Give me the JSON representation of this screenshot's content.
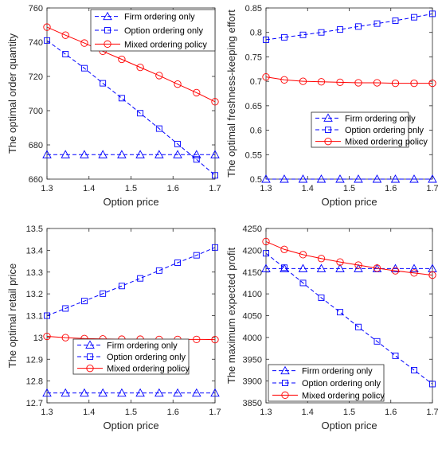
{
  "legend_labels": [
    "Firm ordering only",
    "Option ordering only",
    "Mixed ordering policy"
  ],
  "colors": {
    "firm": "#0000ff",
    "option": "#0000ff",
    "mixed": "#ff0000",
    "axis": "#262626"
  },
  "chart_data": [
    {
      "type": "line",
      "xlabel": "Option price",
      "ylabel": "The optimal order quantity",
      "xlim": [
        1.3,
        1.7
      ],
      "ylim": [
        660,
        760
      ],
      "xticks": [
        "1.3",
        "1.4",
        "1.5",
        "1.6",
        "1.7"
      ],
      "yticks": [
        "660",
        "680",
        "700",
        "720",
        "740",
        "760"
      ],
      "legend": "top-right",
      "x": [
        1.3,
        1.344,
        1.389,
        1.433,
        1.478,
        1.522,
        1.567,
        1.611,
        1.656,
        1.7
      ],
      "series": [
        {
          "name": "Firm ordering only",
          "style": "firm",
          "values": [
            674.3,
            674.3,
            674.3,
            674.3,
            674.3,
            674.3,
            674.3,
            674.3,
            674.3,
            674.3
          ]
        },
        {
          "name": "Option ordering only",
          "style": "option",
          "values": [
            741,
            733,
            724.8,
            716,
            707.3,
            698.5,
            689.5,
            680.5,
            671.5,
            662.2
          ]
        },
        {
          "name": "Mixed ordering policy",
          "style": "mixed",
          "values": [
            748.8,
            744.1,
            739.5,
            734.7,
            730,
            725.3,
            720.5,
            715.5,
            710.5,
            705.2
          ]
        }
      ]
    },
    {
      "type": "line",
      "xlabel": "Option price",
      "ylabel": "The optimal freshness-keeping effort",
      "xlim": [
        1.3,
        1.7
      ],
      "ylim": [
        0.5,
        0.85
      ],
      "xticks": [
        "1.3",
        "1.4",
        "1.5",
        "1.6",
        "1.7"
      ],
      "yticks": [
        "0.5",
        "0.55",
        "0.6",
        "0.65",
        "0.7",
        "0.75",
        "0.8",
        "0.85"
      ],
      "legend": "bottom-right",
      "x": [
        1.3,
        1.344,
        1.389,
        1.433,
        1.478,
        1.522,
        1.567,
        1.611,
        1.656,
        1.7
      ],
      "series": [
        {
          "name": "Firm ordering only",
          "style": "firm",
          "values": [
            0.5,
            0.5,
            0.5,
            0.5,
            0.5,
            0.5,
            0.5,
            0.5,
            0.5,
            0.5
          ]
        },
        {
          "name": "Option ordering only",
          "style": "option",
          "values": [
            0.785,
            0.79,
            0.795,
            0.8,
            0.806,
            0.812,
            0.818,
            0.824,
            0.831,
            0.838
          ]
        },
        {
          "name": "Mixed ordering policy",
          "style": "mixed",
          "values": [
            0.709,
            0.703,
            0.7,
            0.699,
            0.698,
            0.697,
            0.697,
            0.696,
            0.696,
            0.696
          ]
        }
      ]
    },
    {
      "type": "line",
      "xlabel": "Option price",
      "ylabel": "The optimal retail price",
      "xlim": [
        1.3,
        1.7
      ],
      "ylim": [
        12.7,
        13.5
      ],
      "xticks": [
        "1.3",
        "1.4",
        "1.5",
        "1.6",
        "1.7"
      ],
      "yticks": [
        "12.7",
        "12.8",
        "12.9",
        "13",
        "13.1",
        "13.2",
        "13.3",
        "13.4",
        "13.5"
      ],
      "legend": "bottom-right",
      "x": [
        1.3,
        1.344,
        1.389,
        1.433,
        1.478,
        1.522,
        1.567,
        1.611,
        1.656,
        1.7
      ],
      "series": [
        {
          "name": "Firm ordering only",
          "style": "firm",
          "values": [
            12.745,
            12.745,
            12.745,
            12.745,
            12.745,
            12.745,
            12.745,
            12.745,
            12.745,
            12.745
          ]
        },
        {
          "name": "Option ordering only",
          "style": "option",
          "values": [
            13.1,
            13.133,
            13.167,
            13.201,
            13.236,
            13.271,
            13.307,
            13.343,
            13.377,
            13.413
          ]
        },
        {
          "name": "Mixed ordering policy",
          "style": "mixed",
          "values": [
            13.005,
            12.999,
            12.995,
            12.993,
            12.992,
            12.992,
            12.991,
            12.991,
            12.991,
            12.99
          ]
        }
      ]
    },
    {
      "type": "line",
      "xlabel": "Option price",
      "ylabel": "The maximum expected profit",
      "xlim": [
        1.3,
        1.7
      ],
      "ylim": [
        3850,
        4250
      ],
      "xticks": [
        "1.3",
        "1.4",
        "1.5",
        "1.6",
        "1.7"
      ],
      "yticks": [
        "3850",
        "3900",
        "3950",
        "4000",
        "4050",
        "4100",
        "4150",
        "4200",
        "4250"
      ],
      "legend": "bottom-left",
      "x": [
        1.3,
        1.344,
        1.389,
        1.433,
        1.478,
        1.522,
        1.567,
        1.611,
        1.656,
        1.7
      ],
      "series": [
        {
          "name": "Firm ordering only",
          "style": "firm",
          "values": [
            4158,
            4158,
            4158,
            4158,
            4158,
            4158,
            4158,
            4158,
            4158,
            4158
          ]
        },
        {
          "name": "Option ordering only",
          "style": "option",
          "values": [
            4193,
            4160,
            4125,
            4091,
            4058,
            4024,
            3991,
            3958,
            3925,
            3893
          ]
        },
        {
          "name": "Mixed ordering policy",
          "style": "mixed",
          "values": [
            4220,
            4202,
            4190,
            4181,
            4173,
            4166,
            4159,
            4153,
            4148,
            4143
          ]
        }
      ]
    }
  ]
}
